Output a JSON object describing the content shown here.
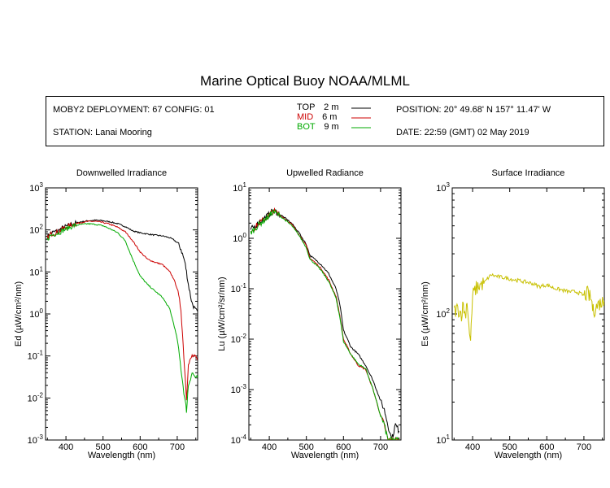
{
  "title": "Marine Optical Buoy NOAA/MLML",
  "header": {
    "deployment": "MOBY2 DEPLOYMENT: 67 CONFIG: 01",
    "station": "STATION: Lanai Mooring",
    "position": "POSITION: 20° 49.68' N   157° 11.47' W",
    "date": "DATE: 22:59 (GMT) 02 May 2019",
    "legend": [
      {
        "label": "TOP",
        "depth": "2",
        "unit": "m",
        "color": "#000000",
        "label_color": "#000000"
      },
      {
        "label": "MID",
        "depth": "6",
        "unit": "m",
        "color": "#cc0000",
        "label_color": "#cc0000"
      },
      {
        "label": "BOT",
        "depth": "9",
        "unit": "m",
        "color": "#00aa00",
        "label_color": "#00aa00"
      }
    ]
  },
  "chart_data": [
    {
      "type": "line",
      "title": "Downwelled Irradiance",
      "xlabel": "Wavelength (nm)",
      "ylabel": "Ed  (µW/cm²/nm)",
      "xlim": [
        345,
        755
      ],
      "xticks": [
        400,
        500,
        600,
        700
      ],
      "ylim_log10": [
        -3,
        3
      ],
      "yscale": "log",
      "ytick_labels": [
        "10-3",
        "10-2",
        "10-1",
        "100",
        "101",
        "102",
        "103"
      ],
      "x": [
        350,
        360,
        370,
        380,
        390,
        400,
        420,
        440,
        460,
        480,
        500,
        520,
        540,
        560,
        580,
        600,
        620,
        640,
        660,
        680,
        690,
        700,
        710,
        720,
        725,
        730,
        740,
        750,
        755
      ],
      "series": [
        {
          "name": "TOP",
          "color": "#000000",
          "values": [
            70,
            85,
            90,
            95,
            110,
            120,
            140,
            155,
            165,
            170,
            165,
            155,
            140,
            120,
            95,
            85,
            80,
            75,
            72,
            65,
            58,
            50,
            35,
            18,
            10,
            5,
            1.8,
            1.2,
            1.15
          ]
        },
        {
          "name": "MID",
          "color": "#cc0000",
          "values": [
            65,
            80,
            85,
            90,
            105,
            115,
            135,
            150,
            160,
            160,
            150,
            135,
            115,
            90,
            55,
            30,
            20,
            17,
            15,
            10,
            7,
            4,
            1.3,
            0.05,
            0.01,
            0.06,
            0.1,
            0.09,
            0.08
          ]
        },
        {
          "name": "BOT",
          "color": "#00aa00",
          "values": [
            60,
            75,
            80,
            85,
            95,
            105,
            125,
            135,
            140,
            135,
            125,
            105,
            85,
            55,
            20,
            8,
            5,
            3.5,
            2.5,
            1.3,
            0.6,
            0.25,
            0.05,
            0.01,
            0.005,
            0.02,
            0.04,
            0.03,
            0.03
          ]
        }
      ]
    },
    {
      "type": "line",
      "title": "Upwelled Radiance",
      "xlabel": "Wavelength (nm)",
      "ylabel": "Lu  (µW/cm²/sr/nm)",
      "xlim": [
        345,
        755
      ],
      "xticks": [
        400,
        500,
        600,
        700
      ],
      "ylim_log10": [
        -4,
        1
      ],
      "yscale": "log",
      "ytick_labels": [
        "10-4",
        "10-3",
        "10-2",
        "10-1",
        "100",
        "101"
      ],
      "x": [
        350,
        360,
        370,
        380,
        390,
        400,
        410,
        420,
        440,
        460,
        480,
        500,
        510,
        520,
        540,
        560,
        580,
        590,
        600,
        620,
        640,
        660,
        680,
        700,
        710,
        720,
        730,
        740,
        750
      ],
      "series": [
        {
          "name": "TOP",
          "color": "#000000",
          "values": [
            1.5,
            1.7,
            2.0,
            2.3,
            2.6,
            3.0,
            3.6,
            3.3,
            2.6,
            2.0,
            1.3,
            0.75,
            0.45,
            0.4,
            0.3,
            0.2,
            0.1,
            0.05,
            0.015,
            0.007,
            0.005,
            0.003,
            0.0015,
            0.0006,
            0.0004,
            0.0002,
            0.0001,
            0.0002,
            0.00015
          ]
        },
        {
          "name": "MID",
          "color": "#cc0000",
          "values": [
            1.4,
            1.6,
            1.9,
            2.2,
            2.5,
            2.9,
            3.5,
            3.2,
            2.5,
            1.9,
            1.2,
            0.7,
            0.4,
            0.35,
            0.25,
            0.15,
            0.07,
            0.03,
            0.01,
            0.005,
            0.003,
            0.0025,
            0.001,
            0.0003,
            0.0002,
            0.0001,
            0.0001,
            0.0001,
            0.0001
          ]
        },
        {
          "name": "BOT",
          "color": "#00aa00",
          "values": [
            1.3,
            1.5,
            1.8,
            2.1,
            2.4,
            2.8,
            3.4,
            3.1,
            2.4,
            1.8,
            1.15,
            0.65,
            0.38,
            0.33,
            0.23,
            0.14,
            0.065,
            0.028,
            0.009,
            0.005,
            0.0032,
            0.0026,
            0.001,
            0.0003,
            0.0002,
            0.0001,
            0.0001,
            0.0001,
            0.0001
          ]
        }
      ]
    },
    {
      "type": "line",
      "title": "Surface Irradiance",
      "xlabel": "Wavelength (nm)",
      "ylabel": "Es  (µW/cm²/nm)",
      "xlim": [
        345,
        755
      ],
      "xticks": [
        400,
        500,
        600,
        700
      ],
      "ylim_log10": [
        1,
        3
      ],
      "yscale": "log",
      "ytick_labels": [
        "101",
        "102",
        "103"
      ],
      "x": [
        350,
        360,
        370,
        375,
        380,
        385,
        390,
        393,
        396,
        400,
        410,
        420,
        430,
        440,
        450,
        460,
        480,
        500,
        520,
        540,
        560,
        580,
        600,
        620,
        640,
        660,
        680,
        690,
        700,
        710,
        720,
        725,
        730,
        740,
        750,
        755
      ],
      "series": [
        {
          "name": "Es",
          "color": "#c8c000",
          "values": [
            105,
            110,
            100,
            120,
            95,
            130,
            80,
            60,
            75,
            140,
            160,
            170,
            175,
            190,
            205,
            200,
            195,
            190,
            185,
            180,
            175,
            165,
            170,
            160,
            155,
            150,
            150,
            145,
            140,
            145,
            130,
            105,
            110,
            120,
            125,
            128
          ]
        }
      ]
    }
  ]
}
